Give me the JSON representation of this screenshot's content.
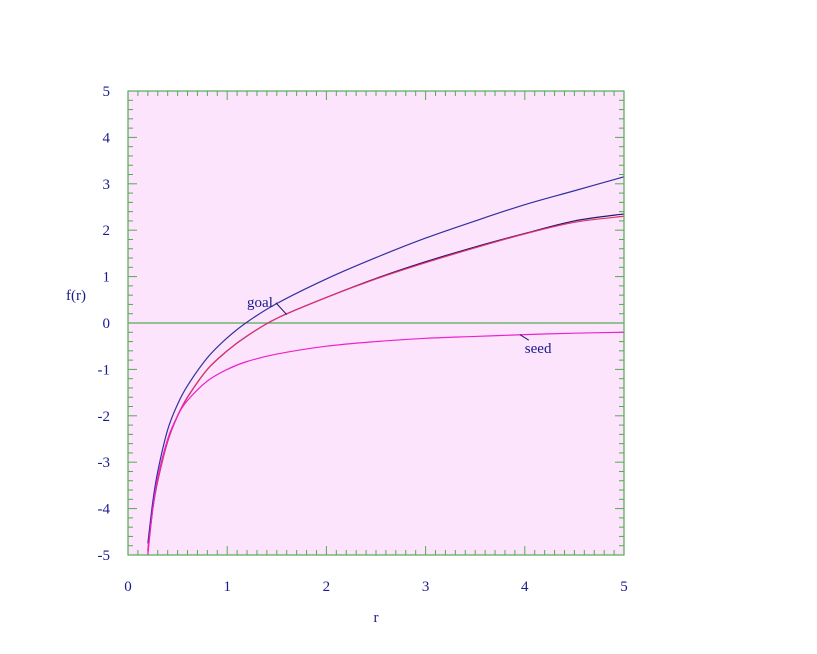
{
  "chart_data": {
    "type": "line",
    "title": "",
    "xlabel": "r",
    "ylabel": "f(r)",
    "xlim": [
      0,
      5
    ],
    "ylim": [
      -5,
      5
    ],
    "x_ticks": [
      "0",
      "1",
      "2",
      "3",
      "4",
      "5"
    ],
    "y_ticks": [
      "5",
      "4",
      "3",
      "2",
      "1",
      "0",
      "-1",
      "-2",
      "-3",
      "-4",
      "-5"
    ],
    "grid": false,
    "background_color": "#fce4fc",
    "frame_color": "#55aa55",
    "zero_line_color": "#55aa55",
    "series": [
      {
        "color": "#3030a0",
        "x": [
          0.2,
          0.25,
          0.3,
          0.4,
          0.5,
          0.6,
          0.8,
          1.0,
          1.2,
          1.5,
          2.0,
          2.5,
          3.0,
          3.5,
          4.0,
          4.5,
          5.0
        ],
        "values": [
          -4.75,
          -3.85,
          -3.2,
          -2.3,
          -1.75,
          -1.35,
          -0.75,
          -0.32,
          0.02,
          0.42,
          0.95,
          1.41,
          1.83,
          2.2,
          2.55,
          2.85,
          3.15
        ]
      },
      {
        "color": "#1a1a70",
        "x": [
          0.2,
          0.25,
          0.3,
          0.4,
          0.5,
          0.6,
          0.8,
          1.0,
          1.2,
          1.5,
          2.0,
          2.5,
          3.0,
          3.5,
          4.0,
          4.5,
          5.0
        ],
        "values": [
          -4.9,
          -4.0,
          -3.4,
          -2.55,
          -2.0,
          -1.6,
          -1.0,
          -0.6,
          -0.28,
          0.1,
          0.55,
          0.96,
          1.32,
          1.64,
          1.93,
          2.2,
          2.35
        ]
      },
      {
        "color": "#e8306a",
        "x": [
          0.2,
          0.25,
          0.3,
          0.4,
          0.5,
          0.6,
          0.8,
          1.0,
          1.2,
          1.5,
          2.0,
          2.5,
          3.0,
          3.5,
          4.0,
          4.5,
          5.0
        ],
        "values": [
          -4.9,
          -4.0,
          -3.4,
          -2.55,
          -2.0,
          -1.6,
          -1.0,
          -0.6,
          -0.28,
          0.1,
          0.55,
          0.95,
          1.3,
          1.62,
          1.92,
          2.17,
          2.3
        ]
      },
      {
        "color": "#ee22cc",
        "x": [
          0.2,
          0.25,
          0.3,
          0.4,
          0.5,
          0.6,
          0.8,
          1.0,
          1.2,
          1.5,
          2.0,
          2.5,
          3.0,
          3.5,
          4.0,
          4.5,
          5.0
        ],
        "values": [
          -5.0,
          -4.0,
          -3.33,
          -2.5,
          -2.0,
          -1.67,
          -1.25,
          -1.0,
          -0.83,
          -0.67,
          -0.5,
          -0.4,
          -0.33,
          -0.29,
          -0.25,
          -0.22,
          -0.2
        ]
      }
    ],
    "annotations": [
      {
        "text": "goal",
        "x": 1.2,
        "y": 0.35,
        "leader_to": [
          1.6,
          0.18
        ]
      },
      {
        "text": "seed",
        "x": 4.0,
        "y": -0.65,
        "leader_to": [
          3.95,
          -0.25
        ]
      }
    ]
  }
}
